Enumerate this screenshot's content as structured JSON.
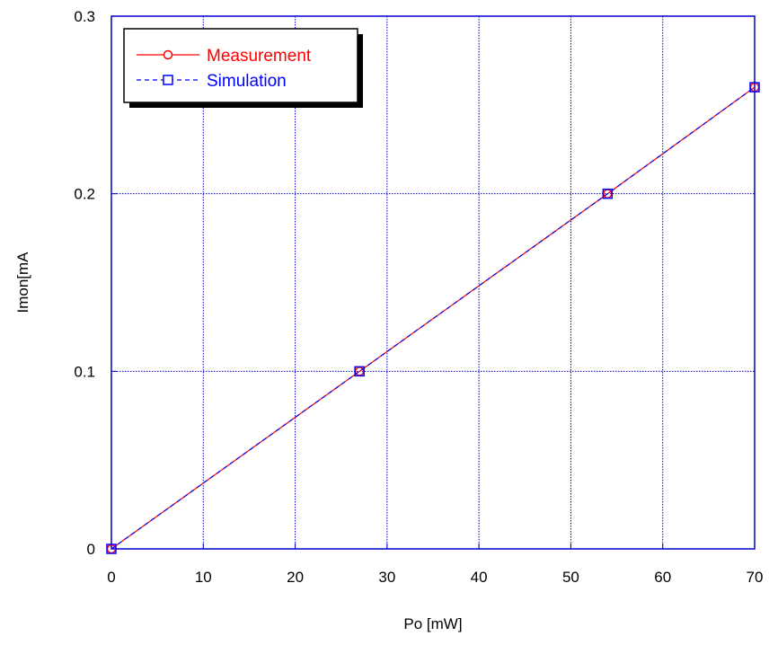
{
  "chart_data": {
    "type": "line",
    "title": "",
    "xlabel": "Po [mW]",
    "ylabel": "Imon[mA",
    "xlim": [
      0,
      70
    ],
    "ylim": [
      0,
      0.3
    ],
    "x_ticks": [
      0,
      10,
      20,
      30,
      40,
      50,
      60,
      70
    ],
    "x_tick_labels": [
      "0",
      "10",
      "20",
      "30",
      "40",
      "50",
      "60",
      "70"
    ],
    "y_ticks": [
      0,
      0.1,
      0.2,
      0.3
    ],
    "y_tick_labels": [
      "0",
      "0.1",
      "0.2",
      "0.3"
    ],
    "grid": true,
    "legend_position": "top-left",
    "series": [
      {
        "name": "Measurement",
        "color": "#ff0000",
        "line_style": "solid",
        "marker": "circle",
        "x": [
          0,
          27,
          54,
          70
        ],
        "y": [
          0,
          0.1,
          0.2,
          0.26
        ]
      },
      {
        "name": "Simulation",
        "color": "#0000ff",
        "line_style": "dashed",
        "marker": "square",
        "x": [
          0,
          27,
          54,
          70
        ],
        "y": [
          0,
          0.1,
          0.2,
          0.26
        ]
      }
    ],
    "colors": {
      "frame": "#0000cc",
      "grid": "#0000cc"
    }
  }
}
